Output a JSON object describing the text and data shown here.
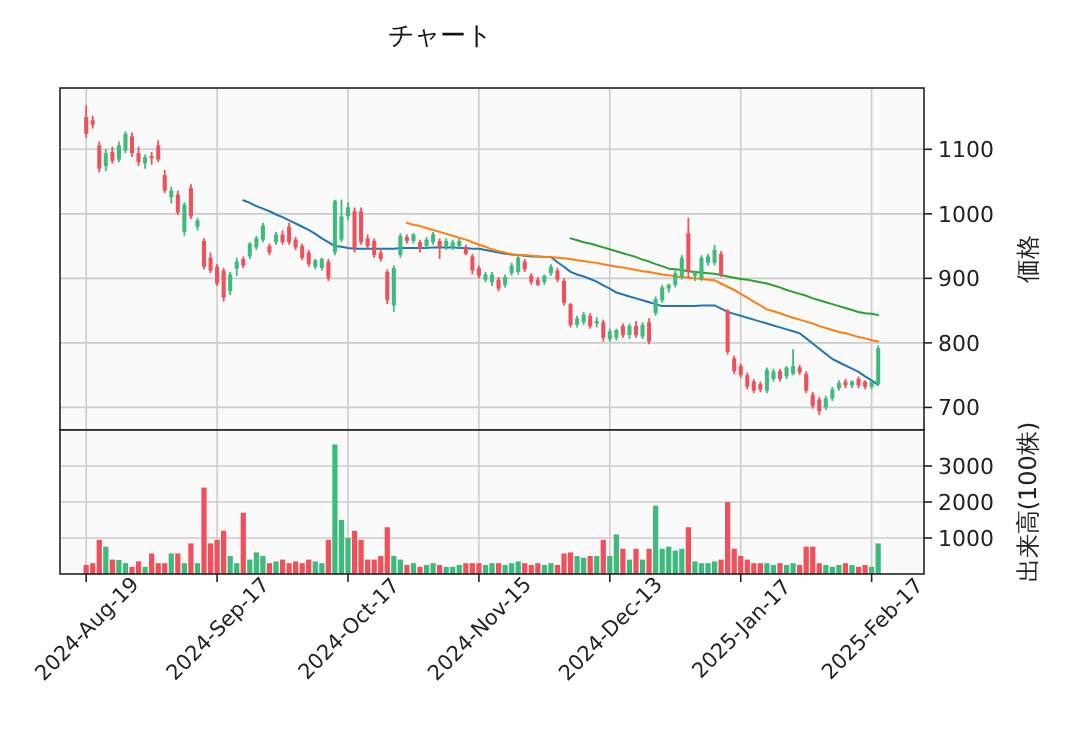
{
  "chart_data": [
    {
      "type": "candlestick",
      "title": "チャート",
      "ylabel": "価格",
      "grid": true,
      "tick_labels": "y",
      "ylim": [
        665,
        1195
      ],
      "yticks": [
        700,
        800,
        900,
        1000,
        1100
      ],
      "categories": [
        null,
        null,
        null,
        null,
        null,
        null,
        null,
        null,
        null,
        null,
        null,
        null,
        null,
        null,
        null,
        null,
        null,
        null,
        null,
        null,
        null,
        null,
        null,
        null,
        null,
        null,
        null,
        null,
        null,
        null,
        null,
        null,
        null,
        null,
        null,
        null,
        null,
        null,
        null,
        null,
        null,
        null,
        null,
        null,
        null,
        null,
        null,
        null,
        null,
        null,
        null,
        null,
        null,
        null,
        null,
        null,
        null,
        null,
        null,
        null,
        null,
        null,
        null,
        null,
        null,
        null,
        null,
        null,
        null,
        null,
        null,
        null,
        null,
        null,
        null,
        null,
        null,
        null,
        null,
        null,
        null,
        null,
        null,
        null,
        null,
        null,
        null,
        null,
        null,
        null,
        null,
        null,
        null,
        null,
        null,
        null,
        null,
        null,
        null,
        null,
        null,
        null,
        null,
        null,
        null,
        null,
        null,
        null,
        null,
        null,
        null,
        null,
        null,
        null,
        null,
        null,
        null,
        null,
        null,
        null,
        null,
        null
      ],
      "ohlc": [
        [
          1150,
          1168,
          1118,
          1124
        ],
        [
          1145,
          1152,
          1132,
          1138
        ],
        [
          1106,
          1112,
          1064,
          1070
        ],
        [
          1074,
          1100,
          1066,
          1094
        ],
        [
          1096,
          1104,
          1078,
          1082
        ],
        [
          1084,
          1112,
          1080,
          1106
        ],
        [
          1098,
          1128,
          1094,
          1124
        ],
        [
          1120,
          1126,
          1088,
          1094
        ],
        [
          1094,
          1104,
          1074,
          1080
        ],
        [
          1078,
          1092,
          1070,
          1088
        ],
        [
          1090,
          1096,
          1076,
          1086
        ],
        [
          1106,
          1114,
          1080,
          1084
        ],
        [
          1060,
          1068,
          1032,
          1036
        ],
        [
          1026,
          1042,
          1016,
          1036
        ],
        [
          1030,
          1036,
          998,
          1002
        ],
        [
          972,
          1018,
          966,
          1014
        ],
        [
          1040,
          1046,
          992,
          996
        ],
        [
          980,
          994,
          974,
          990
        ],
        [
          958,
          962,
          914,
          918
        ],
        [
          932,
          940,
          908,
          912
        ],
        [
          918,
          922,
          888,
          892
        ],
        [
          912,
          916,
          864,
          870
        ],
        [
          880,
          910,
          874,
          906
        ],
        [
          915,
          932,
          904,
          926
        ],
        [
          930,
          934,
          916,
          920
        ],
        [
          934,
          956,
          930,
          954
        ],
        [
          948,
          966,
          944,
          962
        ],
        [
          960,
          986,
          956,
          982
        ],
        [
          950,
          954,
          936,
          940
        ],
        [
          956,
          972,
          952,
          968
        ],
        [
          968,
          974,
          952,
          956
        ],
        [
          980,
          986,
          952,
          956
        ],
        [
          960,
          964,
          944,
          948
        ],
        [
          950,
          954,
          928,
          932
        ],
        [
          940,
          944,
          918,
          922
        ],
        [
          918,
          930,
          914,
          928
        ],
        [
          916,
          932,
          912,
          930
        ],
        [
          926,
          930,
          896,
          900
        ],
        [
          940,
          1022,
          936,
          1020
        ],
        [
          960,
          1022,
          956,
          996
        ],
        [
          996,
          1018,
          990,
          1010
        ],
        [
          1004,
          1010,
          940,
          946
        ],
        [
          1004,
          1010,
          952,
          956
        ],
        [
          962,
          968,
          946,
          950
        ],
        [
          958,
          962,
          932,
          936
        ],
        [
          940,
          946,
          926,
          930
        ],
        [
          910,
          914,
          860,
          866
        ],
        [
          858,
          920,
          848,
          916
        ],
        [
          936,
          970,
          932,
          966
        ],
        [
          964,
          968,
          954,
          958
        ],
        [
          958,
          970,
          954,
          968
        ],
        [
          956,
          960,
          940,
          946
        ],
        [
          950,
          964,
          946,
          960
        ],
        [
          956,
          972,
          952,
          968
        ],
        [
          958,
          962,
          930,
          948
        ],
        [
          950,
          962,
          944,
          958
        ],
        [
          948,
          960,
          944,
          956
        ],
        [
          950,
          962,
          946,
          958
        ],
        [
          948,
          952,
          936,
          938
        ],
        [
          934,
          938,
          906,
          912
        ],
        [
          916,
          920,
          900,
          904
        ],
        [
          898,
          910,
          894,
          906
        ],
        [
          894,
          910,
          888,
          906
        ],
        [
          898,
          902,
          880,
          884
        ],
        [
          890,
          906,
          886,
          902
        ],
        [
          908,
          924,
          904,
          920
        ],
        [
          910,
          936,
          906,
          932
        ],
        [
          926,
          930,
          910,
          914
        ],
        [
          904,
          908,
          890,
          894
        ],
        [
          898,
          902,
          888,
          890
        ],
        [
          894,
          906,
          890,
          904
        ],
        [
          908,
          922,
          904,
          918
        ],
        [
          912,
          916,
          894,
          898
        ],
        [
          896,
          900,
          858,
          862
        ],
        [
          860,
          862,
          824,
          828
        ],
        [
          828,
          842,
          824,
          838
        ],
        [
          832,
          848,
          828,
          844
        ],
        [
          842,
          846,
          822,
          826
        ],
        [
          830,
          840,
          824,
          834
        ],
        [
          832,
          836,
          802,
          808
        ],
        [
          806,
          822,
          802,
          818
        ],
        [
          808,
          822,
          804,
          820
        ],
        [
          826,
          830,
          808,
          812
        ],
        [
          812,
          830,
          806,
          826
        ],
        [
          826,
          834,
          808,
          812
        ],
        [
          810,
          832,
          806,
          828
        ],
        [
          832,
          838,
          798,
          802
        ],
        [
          846,
          872,
          842,
          868
        ],
        [
          866,
          890,
          862,
          886
        ],
        [
          884,
          892,
          878,
          890
        ],
        [
          890,
          912,
          886,
          908
        ],
        [
          902,
          936,
          898,
          932
        ],
        [
          970,
          994,
          900,
          910
        ],
        [
          904,
          912,
          896,
          908
        ],
        [
          900,
          936,
          896,
          932
        ],
        [
          924,
          938,
          920,
          934
        ],
        [
          924,
          952,
          920,
          944
        ],
        [
          938,
          942,
          902,
          906
        ],
        [
          850,
          852,
          782,
          786
        ],
        [
          776,
          780,
          752,
          756
        ],
        [
          764,
          768,
          746,
          750
        ],
        [
          750,
          754,
          728,
          732
        ],
        [
          740,
          744,
          722,
          726
        ],
        [
          736,
          740,
          724,
          728
        ],
        [
          726,
          762,
          722,
          758
        ],
        [
          744,
          760,
          740,
          756
        ],
        [
          756,
          760,
          740,
          744
        ],
        [
          748,
          764,
          744,
          762
        ],
        [
          752,
          790,
          750,
          764
        ],
        [
          762,
          766,
          750,
          754
        ],
        [
          752,
          756,
          722,
          726
        ],
        [
          720,
          724,
          698,
          702
        ],
        [
          712,
          716,
          688,
          694
        ],
        [
          700,
          718,
          696,
          714
        ],
        [
          714,
          732,
          710,
          728
        ],
        [
          730,
          742,
          726,
          738
        ],
        [
          740,
          744,
          730,
          734
        ],
        [
          734,
          742,
          730,
          740
        ],
        [
          744,
          748,
          730,
          734
        ],
        [
          740,
          742,
          728,
          732
        ],
        [
          732,
          742,
          728,
          740
        ],
        [
          736,
          796,
          734,
          792
        ]
      ],
      "colors": [
        "#f0505a",
        "#f0505a",
        "#f0505a",
        "#3dbb7e",
        "#f0505a",
        "#3dbb7e",
        "#3dbb7e",
        "#f0505a",
        "#f0505a",
        "#3dbb7e",
        "#f0505a",
        "#f0505a",
        "#f0505a",
        "#3dbb7e",
        "#f0505a",
        "#3dbb7e",
        "#f0505a",
        "#3dbb7e",
        "#f0505a",
        "#f0505a",
        "#f0505a",
        "#f0505a",
        "#3dbb7e",
        "#3dbb7e",
        "#f0505a",
        "#3dbb7e",
        "#3dbb7e",
        "#3dbb7e",
        "#f0505a",
        "#3dbb7e",
        "#f0505a",
        "#f0505a",
        "#f0505a",
        "#f0505a",
        "#f0505a",
        "#3dbb7e",
        "#3dbb7e",
        "#f0505a",
        "#3dbb7e",
        "#3dbb7e",
        "#3dbb7e",
        "#f0505a",
        "#f0505a",
        "#f0505a",
        "#f0505a",
        "#f0505a",
        "#f0505a",
        "#3dbb7e",
        "#3dbb7e",
        "#f0505a",
        "#3dbb7e",
        "#f0505a",
        "#3dbb7e",
        "#3dbb7e",
        "#f0505a",
        "#3dbb7e",
        "#3dbb7e",
        "#3dbb7e",
        "#f0505a",
        "#f0505a",
        "#f0505a",
        "#3dbb7e",
        "#3dbb7e",
        "#f0505a",
        "#3dbb7e",
        "#3dbb7e",
        "#3dbb7e",
        "#f0505a",
        "#f0505a",
        "#f0505a",
        "#3dbb7e",
        "#3dbb7e",
        "#f0505a",
        "#f0505a",
        "#f0505a",
        "#3dbb7e",
        "#3dbb7e",
        "#f0505a",
        "#3dbb7e",
        "#f0505a",
        "#3dbb7e",
        "#3dbb7e",
        "#f0505a",
        "#3dbb7e",
        "#f0505a",
        "#3dbb7e",
        "#f0505a",
        "#3dbb7e",
        "#3dbb7e",
        "#3dbb7e",
        "#3dbb7e",
        "#3dbb7e",
        "#f0505a",
        "#3dbb7e",
        "#3dbb7e",
        "#3dbb7e",
        "#3dbb7e",
        "#f0505a",
        "#f0505a",
        "#f0505a",
        "#f0505a",
        "#f0505a",
        "#f0505a",
        "#f0505a",
        "#3dbb7e",
        "#3dbb7e",
        "#f0505a",
        "#3dbb7e",
        "#3dbb7e",
        "#f0505a",
        "#f0505a",
        "#f0505a",
        "#f0505a",
        "#3dbb7e",
        "#3dbb7e",
        "#3dbb7e",
        "#f0505a",
        "#3dbb7e",
        "#f0505a",
        "#f0505a",
        "#3dbb7e",
        "#3dbb7e"
      ],
      "series": [
        {
          "type": "line",
          "color": "#1f77b4",
          "values": [
            null,
            null,
            null,
            null,
            null,
            null,
            null,
            null,
            null,
            null,
            null,
            null,
            null,
            null,
            null,
            null,
            null,
            null,
            null,
            null,
            null,
            null,
            null,
            null,
            1021,
            1017,
            1012,
            1008,
            1004,
            999,
            995,
            990,
            985,
            980,
            975,
            969,
            962,
            956,
            950,
            949,
            947,
            946,
            946,
            946,
            946,
            946,
            946,
            946,
            947,
            947,
            947,
            947,
            947,
            948,
            948,
            948,
            948,
            947,
            947,
            946,
            946,
            944,
            942,
            940,
            938,
            937,
            936,
            935,
            934,
            934,
            933,
            933,
            925,
            918,
            910,
            906,
            903,
            899,
            895,
            889,
            884,
            878,
            875,
            872,
            869,
            866,
            863,
            860,
            857,
            857,
            857,
            857,
            857,
            857,
            858,
            858,
            858,
            853,
            848,
            845,
            842,
            839,
            836,
            833,
            830,
            827,
            824,
            821,
            818,
            815,
            807,
            799,
            791,
            783,
            775,
            770,
            765,
            760,
            755,
            748,
            742,
            735
          ]
        },
        {
          "type": "line",
          "color": "#ff7f0e",
          "values": [
            null,
            null,
            null,
            null,
            null,
            null,
            null,
            null,
            null,
            null,
            null,
            null,
            null,
            null,
            null,
            null,
            null,
            null,
            null,
            null,
            null,
            null,
            null,
            null,
            null,
            null,
            null,
            null,
            null,
            null,
            null,
            null,
            null,
            null,
            null,
            null,
            null,
            null,
            null,
            null,
            null,
            null,
            null,
            null,
            null,
            null,
            null,
            null,
            null,
            986,
            983,
            981,
            978,
            975,
            972,
            969,
            966,
            963,
            960,
            956,
            952,
            949,
            945,
            942,
            940,
            937,
            936,
            936,
            935,
            934,
            933,
            933,
            932,
            931,
            930,
            928,
            927,
            925,
            924,
            922,
            920,
            918,
            917,
            915,
            913,
            911,
            910,
            908,
            906,
            905,
            903,
            902,
            901,
            900,
            899,
            898,
            897,
            892,
            887,
            882,
            876,
            870,
            864,
            858,
            852,
            849,
            846,
            842,
            839,
            836,
            833,
            830,
            826,
            823,
            820,
            817,
            815,
            812,
            809,
            807,
            804,
            802
          ]
        },
        {
          "type": "line",
          "color": "#2ca02c",
          "values": [
            null,
            null,
            null,
            null,
            null,
            null,
            null,
            null,
            null,
            null,
            null,
            null,
            null,
            null,
            null,
            null,
            null,
            null,
            null,
            null,
            null,
            null,
            null,
            null,
            null,
            null,
            null,
            null,
            null,
            null,
            null,
            null,
            null,
            null,
            null,
            null,
            null,
            null,
            null,
            null,
            null,
            null,
            null,
            null,
            null,
            null,
            null,
            null,
            null,
            null,
            null,
            null,
            null,
            null,
            null,
            null,
            null,
            null,
            null,
            null,
            null,
            null,
            null,
            null,
            null,
            null,
            null,
            null,
            null,
            null,
            null,
            null,
            null,
            null,
            962,
            959,
            956,
            954,
            951,
            948,
            945,
            942,
            939,
            936,
            933,
            929,
            926,
            922,
            919,
            915,
            914,
            913,
            911,
            910,
            909,
            908,
            907,
            905,
            903,
            901,
            899,
            898,
            896,
            894,
            892,
            889,
            886,
            882,
            879,
            876,
            873,
            869,
            866,
            863,
            860,
            857,
            854,
            851,
            848,
            846,
            845,
            843
          ]
        }
      ]
    },
    {
      "type": "bar",
      "ylabel": "出来高(100株)",
      "grid": true,
      "ylim": [
        0,
        4000
      ],
      "yticks": [
        1000,
        2000,
        3000
      ],
      "categories": [
        "2024-Aug-19",
        null,
        null,
        null,
        null,
        null,
        null,
        null,
        null,
        null,
        null,
        null,
        null,
        null,
        null,
        null,
        null,
        null,
        null,
        null,
        "2024-Sep-17",
        null,
        null,
        null,
        null,
        null,
        null,
        null,
        null,
        null,
        null,
        null,
        null,
        null,
        null,
        null,
        null,
        null,
        null,
        null,
        "2024-Oct-17",
        null,
        null,
        null,
        null,
        null,
        null,
        null,
        null,
        null,
        null,
        null,
        null,
        null,
        null,
        null,
        null,
        null,
        null,
        null,
        "2024-Nov-15",
        null,
        null,
        null,
        null,
        null,
        null,
        null,
        null,
        null,
        null,
        null,
        null,
        null,
        null,
        null,
        null,
        null,
        null,
        null,
        "2024-Dec-13",
        null,
        null,
        null,
        null,
        null,
        null,
        null,
        null,
        null,
        null,
        null,
        null,
        null,
        null,
        null,
        null,
        null,
        null,
        null,
        "2025-Jan-17",
        null,
        null,
        null,
        null,
        null,
        null,
        null,
        null,
        null,
        null,
        null,
        null,
        null,
        null,
        null,
        null,
        null,
        null,
        null,
        "2025-Feb-17",
        null
      ],
      "values": [
        250,
        300,
        950,
        760,
        400,
        390,
        300,
        200,
        350,
        200,
        570,
        300,
        300,
        570,
        570,
        300,
        850,
        300,
        2400,
        850,
        950,
        1200,
        500,
        300,
        1700,
        400,
        600,
        500,
        300,
        350,
        400,
        300,
        350,
        300,
        400,
        350,
        300,
        950,
        3600,
        1500,
        1000,
        1200,
        950,
        400,
        400,
        500,
        1300,
        500,
        400,
        250,
        300,
        200,
        250,
        300,
        250,
        200,
        200,
        250,
        300,
        300,
        300,
        250,
        300,
        300,
        250,
        300,
        350,
        300,
        250,
        300,
        250,
        300,
        250,
        570,
        600,
        500,
        450,
        500,
        500,
        950,
        500,
        1100,
        700,
        400,
        700,
        400,
        700,
        1900,
        700,
        760,
        650,
        700,
        1300,
        350,
        300,
        300,
        350,
        400,
        2000,
        700,
        500,
        400,
        300,
        300,
        300,
        250,
        300,
        250,
        300,
        250,
        760,
        760,
        300,
        250,
        200,
        250,
        300,
        250,
        200,
        250,
        200,
        850
      ],
      "colors": [
        "#f0505a",
        "#f0505a",
        "#f0505a",
        "#3dbb7e",
        "#f0505a",
        "#3dbb7e",
        "#3dbb7e",
        "#f0505a",
        "#f0505a",
        "#3dbb7e",
        "#f0505a",
        "#f0505a",
        "#f0505a",
        "#3dbb7e",
        "#f0505a",
        "#3dbb7e",
        "#f0505a",
        "#3dbb7e",
        "#f0505a",
        "#f0505a",
        "#f0505a",
        "#f0505a",
        "#3dbb7e",
        "#3dbb7e",
        "#f0505a",
        "#3dbb7e",
        "#3dbb7e",
        "#3dbb7e",
        "#f0505a",
        "#3dbb7e",
        "#f0505a",
        "#f0505a",
        "#f0505a",
        "#f0505a",
        "#f0505a",
        "#3dbb7e",
        "#3dbb7e",
        "#f0505a",
        "#3dbb7e",
        "#3dbb7e",
        "#3dbb7e",
        "#f0505a",
        "#f0505a",
        "#f0505a",
        "#f0505a",
        "#f0505a",
        "#f0505a",
        "#3dbb7e",
        "#3dbb7e",
        "#f0505a",
        "#3dbb7e",
        "#f0505a",
        "#3dbb7e",
        "#3dbb7e",
        "#f0505a",
        "#3dbb7e",
        "#3dbb7e",
        "#3dbb7e",
        "#f0505a",
        "#f0505a",
        "#f0505a",
        "#3dbb7e",
        "#3dbb7e",
        "#f0505a",
        "#3dbb7e",
        "#3dbb7e",
        "#3dbb7e",
        "#f0505a",
        "#f0505a",
        "#f0505a",
        "#3dbb7e",
        "#3dbb7e",
        "#f0505a",
        "#f0505a",
        "#f0505a",
        "#3dbb7e",
        "#3dbb7e",
        "#f0505a",
        "#3dbb7e",
        "#f0505a",
        "#3dbb7e",
        "#3dbb7e",
        "#f0505a",
        "#3dbb7e",
        "#f0505a",
        "#3dbb7e",
        "#f0505a",
        "#3dbb7e",
        "#3dbb7e",
        "#3dbb7e",
        "#3dbb7e",
        "#3dbb7e",
        "#f0505a",
        "#3dbb7e",
        "#3dbb7e",
        "#3dbb7e",
        "#3dbb7e",
        "#f0505a",
        "#f0505a",
        "#f0505a",
        "#f0505a",
        "#f0505a",
        "#f0505a",
        "#f0505a",
        "#3dbb7e",
        "#3dbb7e",
        "#f0505a",
        "#3dbb7e",
        "#3dbb7e",
        "#f0505a",
        "#f0505a",
        "#f0505a",
        "#f0505a",
        "#3dbb7e",
        "#3dbb7e",
        "#3dbb7e",
        "#f0505a",
        "#3dbb7e",
        "#f0505a",
        "#f0505a",
        "#3dbb7e",
        "#3dbb7e"
      ]
    }
  ]
}
